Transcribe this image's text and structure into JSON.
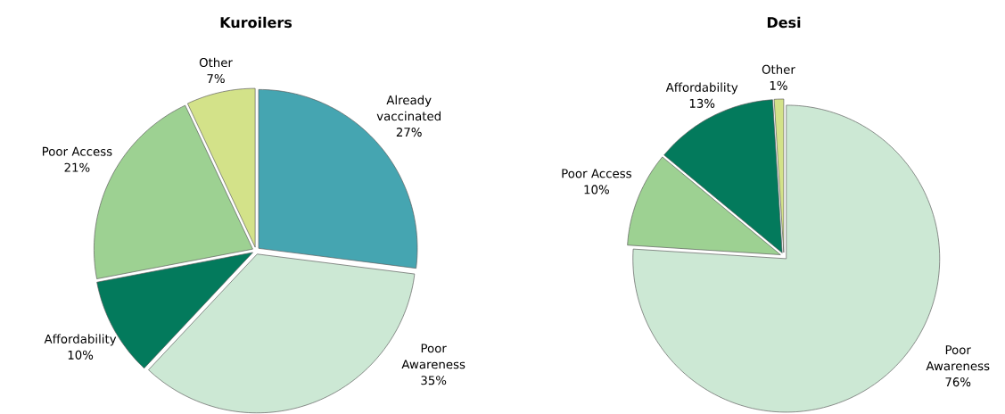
{
  "chart_data": [
    {
      "type": "pie",
      "title": "Kuroilers",
      "categories": [
        "Already vaccinated",
        "Poor Awareness",
        "Affordability",
        "Poor Access",
        "Other"
      ],
      "values": [
        27,
        35,
        10,
        21,
        7
      ],
      "value_labels": [
        "27%",
        "35%",
        "10%",
        "21%",
        "7%"
      ],
      "colors": [
        "#45a5b1",
        "#cce8d4",
        "#037a5c",
        "#9dd192",
        "#d3e289"
      ]
    },
    {
      "type": "pie",
      "title": "Desi",
      "categories": [
        "Poor Awareness",
        "Poor Access",
        "Affordability",
        "Other"
      ],
      "values": [
        76,
        10,
        13,
        1
      ],
      "value_labels": [
        "76%",
        "10%",
        "13%",
        "1%"
      ],
      "colors": [
        "#cce8d4",
        "#9dd192",
        "#037a5c",
        "#d3e289"
      ]
    }
  ]
}
